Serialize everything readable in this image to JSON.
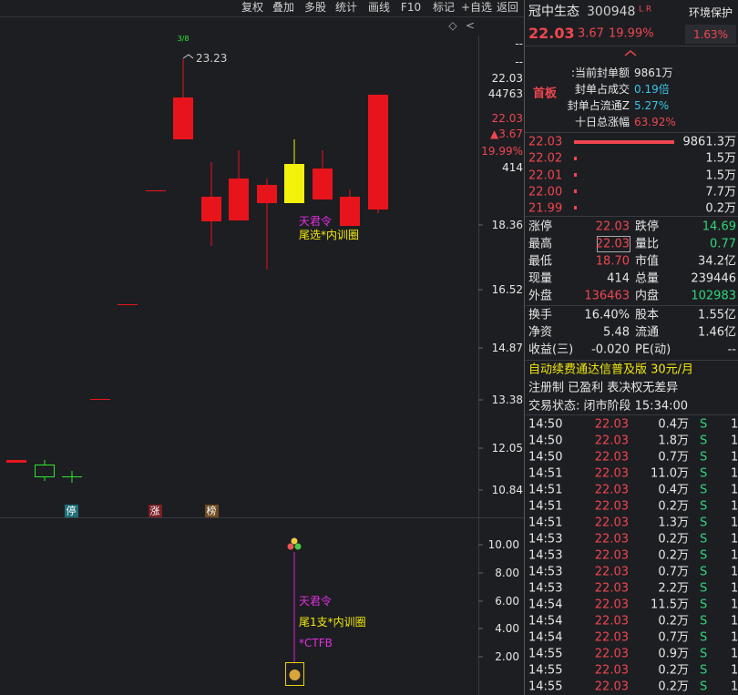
{
  "toolbar": [
    "复权",
    "叠加",
    "多股",
    "统计",
    "画线",
    "F10",
    "标记",
    "+自选",
    "返回"
  ],
  "chart": {
    "date_mark": "3/8",
    "high_label": "23.23",
    "signal": [
      "天君令",
      "尾选*内训圈"
    ],
    "markers": [
      "停",
      "涨",
      "榜"
    ],
    "price_axis": [
      "--",
      "--",
      "22.03",
      "44763",
      "22.03",
      "▲3.67",
      "19.99%",
      "414",
      "18.36",
      "16.52",
      "14.87",
      "13.38",
      "12.05",
      "10.84"
    ],
    "sub_axis": [
      "10.00",
      "8.00",
      "6.00",
      "4.00",
      "2.00"
    ],
    "sub_signal": [
      "天君令",
      "尾1支*内训圈",
      "*CTFB"
    ]
  },
  "quote": {
    "name": "冠中生态",
    "code": "300948",
    "flags": "L R",
    "sector": "环境保护",
    "price": "22.03",
    "change": "3.67",
    "change_pct": "19.99%",
    "sector_pct": "1.63%",
    "board": "首板",
    "seal_info": [
      {
        "label": ":当前封单额",
        "value": "9861万"
      },
      {
        "label": "封单占成交",
        "value": "0.19倍"
      },
      {
        "label": "封单占流通Z",
        "value": "5.27%"
      },
      {
        "label": "十日总涨幅",
        "value": "63.92%"
      }
    ],
    "order_book": [
      {
        "price": "22.03",
        "volume": "9861.3万"
      },
      {
        "price": "22.02",
        "volume": "1.5万"
      },
      {
        "price": "22.01",
        "volume": "1.5万"
      },
      {
        "price": "22.00",
        "volume": "7.7万"
      },
      {
        "price": "21.99",
        "volume": "0.2万"
      }
    ],
    "stats": [
      [
        "涨停",
        "22.03",
        "跌停",
        "14.69"
      ],
      [
        "最高",
        "22.03",
        "量比",
        "0.77"
      ],
      [
        "最低",
        "18.70",
        "市值",
        "34.2亿"
      ],
      [
        "现量",
        "414",
        "总量",
        "239446"
      ],
      [
        "外盘",
        "136463",
        "内盘",
        "102983"
      ],
      [
        "换手",
        "16.40%",
        "股本",
        "1.55亿"
      ],
      [
        "净资",
        "5.48",
        "流通",
        "1.46亿"
      ],
      [
        "收益(三)",
        "-0.020",
        "PE(动)",
        "--"
      ]
    ],
    "promo": "自动续费通达信普及版  30元/月",
    "tags": "注册制 已盈利 表决权无差异",
    "status": "交易状态: 闭市阶段 15:34:00",
    "ticks": [
      [
        "14:50",
        "22.03",
        "0.4万",
        "S",
        "1"
      ],
      [
        "14:50",
        "22.03",
        "1.8万",
        "S",
        "1"
      ],
      [
        "14:50",
        "22.03",
        "0.7万",
        "S",
        "1"
      ],
      [
        "14:51",
        "22.03",
        "11.0万",
        "S",
        "1"
      ],
      [
        "14:51",
        "22.03",
        "0.4万",
        "S",
        "1"
      ],
      [
        "14:51",
        "22.03",
        "0.2万",
        "S",
        "1"
      ],
      [
        "14:51",
        "22.03",
        "1.3万",
        "S",
        "1"
      ],
      [
        "14:53",
        "22.03",
        "0.2万",
        "S",
        "1"
      ],
      [
        "14:53",
        "22.03",
        "0.2万",
        "S",
        "1"
      ],
      [
        "14:53",
        "22.03",
        "0.7万",
        "S",
        "1"
      ],
      [
        "14:53",
        "22.03",
        "2.2万",
        "S",
        "1"
      ],
      [
        "14:54",
        "22.03",
        "11.5万",
        "S",
        "1"
      ],
      [
        "14:54",
        "22.03",
        "0.2万",
        "S",
        "1"
      ],
      [
        "14:54",
        "22.03",
        "0.7万",
        "S",
        "1"
      ],
      [
        "14:55",
        "22.03",
        "0.9万",
        "S",
        "1"
      ],
      [
        "14:55",
        "22.03",
        "0.2万",
        "S",
        "1"
      ],
      [
        "14:55",
        "22.03",
        "0.2万",
        "S",
        "1"
      ]
    ]
  }
}
